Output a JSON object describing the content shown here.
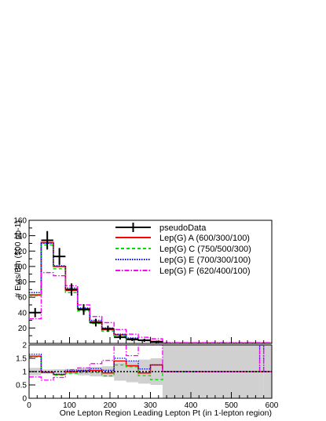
{
  "chart_data": [
    {
      "type": "line",
      "panel": "main",
      "xlabel": "One Lepton Region Leading Lepton Pt (in 1-lepton region)",
      "ylabel": "# Evts/Bin (500 pb-1)",
      "xlim": [
        0,
        600
      ],
      "ylim": [
        0,
        160
      ],
      "yticks": [
        20,
        40,
        60,
        80,
        100,
        120,
        140,
        160
      ],
      "bin_edges": [
        0,
        30,
        60,
        90,
        120,
        150,
        180,
        210,
        240,
        270,
        300,
        330,
        600
      ],
      "legend_position": "top-right",
      "series": [
        {
          "name": "pseudoData",
          "style": "points with error bars",
          "color": "#000000",
          "values": [
            40,
            134,
            113,
            70,
            44,
            27,
            19,
            8,
            5,
            4,
            2,
            0
          ],
          "errors": [
            6,
            12,
            11,
            8,
            7,
            5,
            4,
            3,
            2,
            2,
            1.5,
            0
          ]
        },
        {
          "name": "Lep(G) A (600/300/100)",
          "style": "solid",
          "color": "#ff0000",
          "values": [
            63,
            131,
            100,
            69,
            45,
            28,
            18,
            11,
            6,
            4,
            2.5,
            0.3
          ]
        },
        {
          "name": "Lep(G) C (750/500/300)",
          "style": "dashed",
          "color": "#00dd00",
          "values": [
            62,
            128,
            97,
            66,
            42,
            26,
            16,
            10,
            6,
            3.5,
            2,
            0.3
          ]
        },
        {
          "name": "Lep(G) E (700/300/100)",
          "style": "dotted",
          "color": "#0000ff",
          "values": [
            66,
            130,
            101,
            72,
            46,
            30,
            20,
            12,
            7,
            4.5,
            2.5,
            0.3
          ]
        },
        {
          "name": "Lep(G) F (620/400/100)",
          "style": "dash-dot",
          "color": "#ff00ff",
          "values": [
            32,
            92,
            88,
            75,
            50,
            35,
            27,
            18,
            12,
            8,
            6,
            1
          ]
        }
      ]
    },
    {
      "type": "line",
      "panel": "ratio",
      "xlim": [
        0,
        600
      ],
      "ylim": [
        0,
        2
      ],
      "yticks": [
        0,
        0.5,
        1,
        1.5,
        2
      ],
      "ytick_labels": [
        "0",
        "0.5",
        "1",
        "1.5",
        "2"
      ],
      "xticks": [
        0,
        100,
        200,
        300,
        400,
        500,
        600
      ],
      "reference_line": 1,
      "bin_edges": [
        0,
        30,
        60,
        90,
        120,
        150,
        180,
        210,
        240,
        270,
        300,
        330,
        570,
        580,
        600
      ],
      "uncertainty_band": {
        "color": "#d0d0d0",
        "lower": [
          0.86,
          0.92,
          0.91,
          0.9,
          0.86,
          0.82,
          0.8,
          0.66,
          0.6,
          0.55,
          0.5,
          0.0,
          0.0,
          0.0
        ],
        "upper": [
          1.14,
          1.08,
          1.09,
          1.1,
          1.14,
          1.18,
          1.2,
          1.34,
          1.4,
          1.45,
          1.5,
          2.0,
          2.0,
          2.0
        ]
      },
      "series": [
        {
          "color": "#ff0000",
          "style": "solid",
          "values": [
            1.58,
            0.98,
            0.89,
            0.99,
            1.02,
            1.04,
            0.95,
            1.4,
            1.22,
            0.95,
            1.25,
            1.0,
            1.0,
            1.0
          ]
        },
        {
          "color": "#00dd00",
          "style": "dashed",
          "values": [
            1.55,
            0.96,
            0.86,
            0.94,
            0.96,
            0.96,
            0.84,
            1.25,
            1.18,
            0.85,
            0.7,
            1.0,
            1.0,
            1.0
          ]
        },
        {
          "color": "#0000ff",
          "style": "dotted",
          "values": [
            1.65,
            0.97,
            0.9,
            1.03,
            1.05,
            1.11,
            1.05,
            1.5,
            1.4,
            1.1,
            1.25,
            1.0,
            2.0,
            1.0
          ]
        },
        {
          "color": "#ff00ff",
          "style": "dash-dot",
          "values": [
            0.8,
            0.68,
            0.78,
            1.07,
            1.14,
            1.3,
            1.42,
            2.0,
            1.6,
            2.0,
            2.0,
            1.0,
            2.0,
            1.0
          ]
        }
      ]
    }
  ],
  "axis_ticks": {
    "main_y_labels": [
      "20",
      "40",
      "60",
      "80",
      "100",
      "120",
      "140",
      "160"
    ],
    "ratio_y_labels": [
      "0",
      "0.5",
      "1",
      "1.5",
      "2"
    ],
    "x_labels": [
      "0",
      "100",
      "200",
      "300",
      "400",
      "500",
      "600"
    ]
  }
}
